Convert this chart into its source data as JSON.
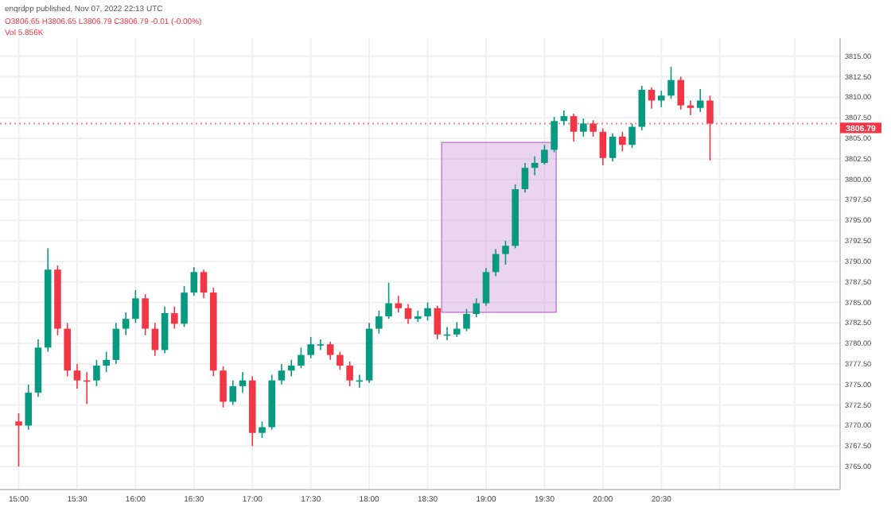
{
  "chart_data": {
    "type": "candlestick",
    "subtitle": "O3806.65 H3806.65 L3806.79 C3806.79 -0.01 (-0.00%)",
    "annotations": [
      "enqrdpp published, Nov 07, 2022 22:13 UTC",
      "Vol 5.856K"
    ],
    "x": [
      15,
      15.0833,
      15.1667,
      15.25,
      15.3333,
      15.4167,
      15.5,
      15.5833,
      15.6667,
      15.75,
      15.8333,
      15.9167,
      16,
      16.0833,
      16.1667,
      16.25,
      16.3333,
      16.4167,
      16.5,
      16.5833,
      16.6667,
      16.75,
      16.8333,
      16.9167,
      17,
      17.0833,
      17.1667,
      17.25,
      17.3333,
      17.4167,
      17.5,
      17.5833,
      17.6667,
      17.75,
      17.8333,
      17.9167,
      18,
      18.0833,
      18.1667,
      18.25,
      18.3333,
      18.4167,
      18.5,
      18.5833,
      18.6667,
      18.75,
      18.8333,
      18.9167,
      19,
      19.0833,
      19.1667,
      19.25,
      19.3333,
      19.4167,
      19.5,
      19.5833,
      19.6667,
      19.75,
      19.8333,
      19.9167,
      20,
      20.0833,
      20.1667,
      20.25,
      20.3333,
      20.4167,
      20.5,
      20.5833,
      20.6667,
      20.75,
      20.8333,
      20.9167
    ],
    "ohlc": [
      [
        3770.5,
        3771.5,
        3765,
        3770
      ],
      [
        3770,
        3775,
        3769.5,
        3774
      ],
      [
        3774,
        3780.5,
        3773.5,
        3779.5
      ],
      [
        3779.5,
        3791.6,
        3779,
        3789
      ],
      [
        3789,
        3789.5,
        3781,
        3781.8
      ],
      [
        3781.8,
        3782.5,
        3776,
        3776.7
      ],
      [
        3776.7,
        3777.5,
        3774.5,
        3775.5
      ],
      [
        3775.5,
        3776.5,
        3772.6,
        3775.5
      ],
      [
        3775.5,
        3778,
        3774.8,
        3777.3
      ],
      [
        3777.3,
        3779,
        3776.5,
        3778
      ],
      [
        3778,
        3782.5,
        3777.5,
        3781.8
      ],
      [
        3781.8,
        3783.8,
        3781,
        3783
      ],
      [
        3783,
        3786.5,
        3782.5,
        3785.5
      ],
      [
        3785.5,
        3786,
        3781,
        3781.8
      ],
      [
        3781.8,
        3782.5,
        3778.5,
        3779.2
      ],
      [
        3779.2,
        3784.5,
        3778.8,
        3783.7
      ],
      [
        3783.7,
        3784.5,
        3781.8,
        3782.4
      ],
      [
        3782.4,
        3787,
        3782,
        3786.2
      ],
      [
        3786.2,
        3789.3,
        3785.8,
        3788.7
      ],
      [
        3788.7,
        3789,
        3785.5,
        3786.2
      ],
      [
        3786.2,
        3786.8,
        3776,
        3776.7
      ],
      [
        3776.7,
        3777.2,
        3772.2,
        3772.9
      ],
      [
        3772.9,
        3775.5,
        3772.5,
        3774.8
      ],
      [
        3774.8,
        3776.5,
        3774,
        3775.5
      ],
      [
        3775.5,
        3776,
        3767.5,
        3769.1
      ],
      [
        3769.1,
        3770.5,
        3768.5,
        3769.8
      ],
      [
        3769.8,
        3776.2,
        3769.5,
        3775.5
      ],
      [
        3775.5,
        3777.5,
        3775,
        3776.7
      ],
      [
        3776.7,
        3778,
        3776,
        3777.3
      ],
      [
        3777.3,
        3779.5,
        3777,
        3778.6
      ],
      [
        3778.6,
        3780.8,
        3778.2,
        3779.9
      ],
      [
        3779.9,
        3780.5,
        3779.2,
        3779.9
      ],
      [
        3779.9,
        3780.2,
        3778,
        3778.6
      ],
      [
        3778.6,
        3779,
        3776.8,
        3777.3
      ],
      [
        3777.3,
        3777.8,
        3774.8,
        3775.5
      ],
      [
        3775.5,
        3776.2,
        3774.6,
        3775.5
      ],
      [
        3775.5,
        3782.5,
        3775.2,
        3781.8
      ],
      [
        3781.8,
        3784,
        3781.2,
        3783.3
      ],
      [
        3783.3,
        3787.4,
        3783,
        3784.9
      ],
      [
        3784.9,
        3785.8,
        3783.8,
        3784.3
      ],
      [
        3784.3,
        3784.8,
        3782.4,
        3783
      ],
      [
        3783,
        3784,
        3782.6,
        3783.3
      ],
      [
        3783.3,
        3785,
        3782.8,
        3784.3
      ],
      [
        3784.3,
        3784.6,
        3780.5,
        3781.1
      ],
      [
        3781.1,
        3782,
        3780.4,
        3781.1
      ],
      [
        3781.1,
        3782.6,
        3780.8,
        3781.8
      ],
      [
        3781.8,
        3784.2,
        3781.5,
        3783.6
      ],
      [
        3783.6,
        3785.5,
        3783.2,
        3784.9
      ],
      [
        3784.9,
        3789.2,
        3784.6,
        3788.7
      ],
      [
        3788.7,
        3791.5,
        3788.2,
        3790.9
      ],
      [
        3790.9,
        3792.5,
        3789.6,
        3791.9
      ],
      [
        3791.9,
        3799.4,
        3791.6,
        3798.8
      ],
      [
        3798.8,
        3802,
        3798.4,
        3801.4
      ],
      [
        3801.4,
        3802.8,
        3800.5,
        3802
      ],
      [
        3802,
        3804.2,
        3801.8,
        3803.6
      ],
      [
        3803.6,
        3807.6,
        3803.3,
        3807.1
      ],
      [
        3807.1,
        3808.4,
        3806.6,
        3807.7
      ],
      [
        3807.7,
        3808,
        3804.6,
        3805.8
      ],
      [
        3805.8,
        3807.4,
        3805.2,
        3806.8
      ],
      [
        3806.8,
        3807.2,
        3805.2,
        3805.8
      ],
      [
        3805.8,
        3806.2,
        3801.7,
        3802.6
      ],
      [
        3802.6,
        3805.6,
        3802.2,
        3805.2
      ],
      [
        3805.2,
        3805.8,
        3803.4,
        3804.2
      ],
      [
        3804.2,
        3806.8,
        3803.8,
        3806.4
      ],
      [
        3806.4,
        3811.4,
        3806,
        3810.9
      ],
      [
        3810.9,
        3811.2,
        3808.6,
        3809.6
      ],
      [
        3809.6,
        3810.8,
        3808.8,
        3810.2
      ],
      [
        3810.2,
        3813.7,
        3809.8,
        3812.1
      ],
      [
        3812.1,
        3812.5,
        3808.5,
        3809
      ],
      [
        3809,
        3809.6,
        3807.8,
        3808.7
      ],
      [
        3808.7,
        3811,
        3808.2,
        3809.6
      ],
      [
        3809.6,
        3810.2,
        3802.3,
        3806.79
      ]
    ],
    "colors": [
      "#f23645",
      "#089981",
      "#089981",
      "#089981",
      "#f23645",
      "#f23645",
      "#f23645",
      "#f23645",
      "#089981",
      "#089981",
      "#089981",
      "#089981",
      "#089981",
      "#f23645",
      "#f23645",
      "#089981",
      "#f23645",
      "#089981",
      "#089981",
      "#f23645",
      "#f23645",
      "#f23645",
      "#089981",
      "#089981",
      "#f23645",
      "#089981",
      "#089981",
      "#089981",
      "#089981",
      "#089981",
      "#089981",
      "#089981",
      "#f23645",
      "#f23645",
      "#f23645",
      "#089981",
      "#089981",
      "#089981",
      "#089981",
      "#f23645",
      "#f23645",
      "#089981",
      "#089981",
      "#f23645",
      "#089981",
      "#089981",
      "#089981",
      "#089981",
      "#089981",
      "#089981",
      "#089981",
      "#089981",
      "#089981",
      "#089981",
      "#089981",
      "#089981",
      "#089981",
      "#f23645",
      "#089981",
      "#f23645",
      "#f23645",
      "#089981",
      "#f23645",
      "#089981",
      "#089981",
      "#f23645",
      "#089981",
      "#089981",
      "#f23645",
      "#f23645",
      "#089981",
      "#f23645"
    ],
    "xlim": [
      14.84,
      22.03
    ],
    "xticks": [
      {
        "value": 15,
        "label": "15:00"
      },
      {
        "value": 15.5,
        "label": "15:30"
      },
      {
        "value": 16,
        "label": "16:00"
      },
      {
        "value": 16.5,
        "label": "16:30"
      },
      {
        "value": 17,
        "label": "17:00"
      },
      {
        "value": 17.5,
        "label": "17:30"
      },
      {
        "value": 18,
        "label": "18:00"
      },
      {
        "value": 18.5,
        "label": "18:30"
      },
      {
        "value": 19,
        "label": "19:00"
      },
      {
        "value": 19.5,
        "label": "19:30"
      },
      {
        "value": 20,
        "label": "20:00"
      },
      {
        "value": 20.5,
        "label": "20:30"
      },
      {
        "value": 21,
        "label": null
      },
      {
        "value": 21.64,
        "label": null
      }
    ],
    "ylim": [
      3762.2,
      3817.2
    ],
    "yticks": [
      {
        "value": 3765,
        "label": "3765.00"
      },
      {
        "value": 3767.5,
        "label": "3767.50"
      },
      {
        "value": 3770,
        "label": "3770.00"
      },
      {
        "value": 3772.5,
        "label": "3772.50"
      },
      {
        "value": 3775,
        "label": "3775.00"
      },
      {
        "value": 3777.5,
        "label": "3777.50"
      },
      {
        "value": 3780,
        "label": "3780.00"
      },
      {
        "value": 3782.5,
        "label": "3782.50"
      },
      {
        "value": 3785,
        "label": "3785.00"
      },
      {
        "value": 3787.5,
        "label": "3787.50"
      },
      {
        "value": 3790,
        "label": "3790.00"
      },
      {
        "value": 3792.5,
        "label": "3792.50"
      },
      {
        "value": 3795,
        "label": "3795.00"
      },
      {
        "value": 3797.5,
        "label": "3797.50"
      },
      {
        "value": 3800,
        "label": "3800.00"
      },
      {
        "value": 3802.5,
        "label": "3802.50"
      },
      {
        "value": 3805,
        "label": "3805.00"
      },
      {
        "value": 3807.5,
        "label": "3807.50"
      },
      {
        "value": 3810,
        "label": "3810.00"
      },
      {
        "value": 3812.5,
        "label": "3812.50"
      },
      {
        "value": 3815,
        "label": "3815.00"
      }
    ],
    "grid": true,
    "ref_lines": [
      {
        "axis": "y",
        "value": 3806.79,
        "label": "3806.79",
        "color": "#f23645",
        "line_style": "dotted"
      }
    ]
  }
}
